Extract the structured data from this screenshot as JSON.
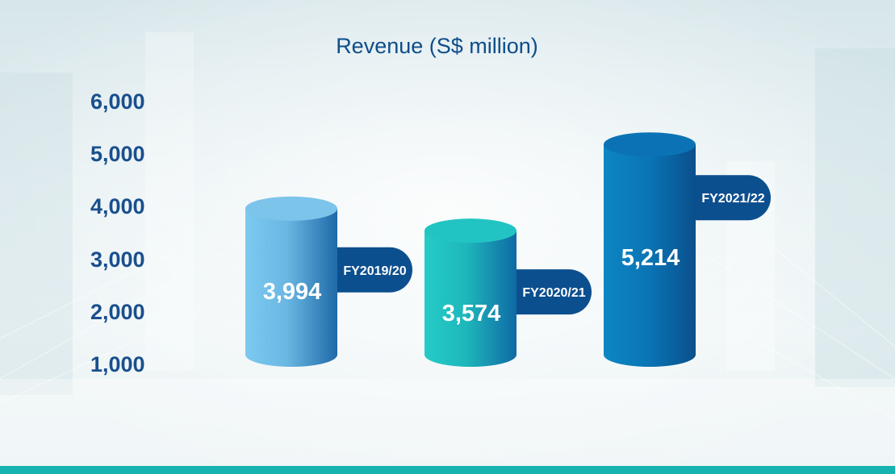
{
  "chart_data": {
    "type": "bar",
    "title": "Revenue (S$ million)",
    "categories": [
      "FY2019/20",
      "FY2020/21",
      "FY2021/22"
    ],
    "values": [
      3994,
      3574,
      5214
    ],
    "value_labels": [
      "3,994",
      "3,574",
      "5,214"
    ],
    "y_ticks": [
      "6,000",
      "5,000",
      "4,000",
      "3,000",
      "2,000",
      "1,000"
    ],
    "ylim": [
      1000,
      6000
    ],
    "grid": false,
    "legend": "none"
  },
  "colors": {
    "bar_1": "#7cc4ea",
    "bar_2": "#22c4c3",
    "bar_3": "#0b73b5",
    "tab": "#0c4f8e",
    "title": "#0f4d8a",
    "ticks": "#1a4f8e",
    "bottom_bar": "#17b3b0"
  }
}
